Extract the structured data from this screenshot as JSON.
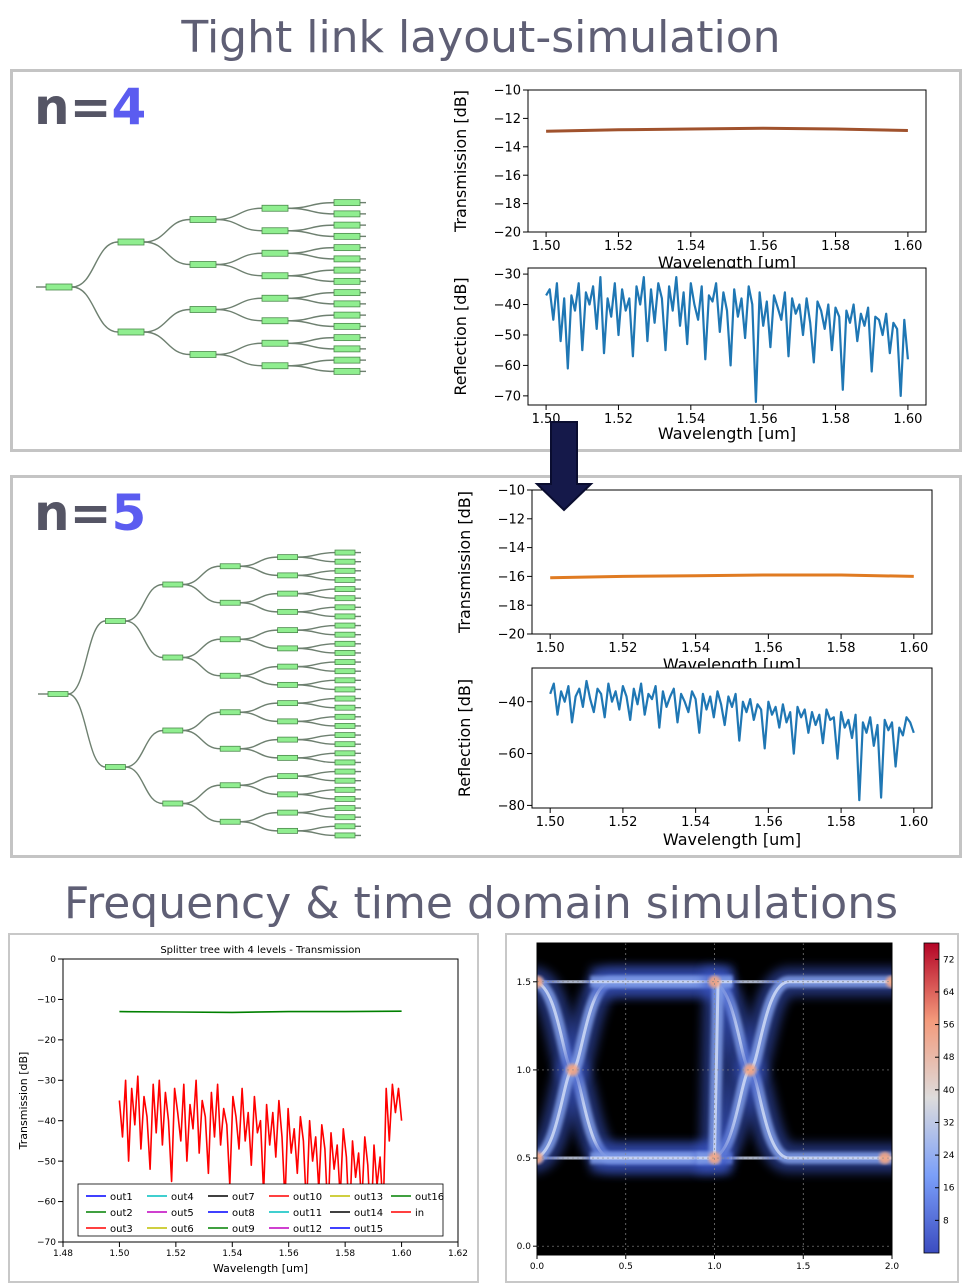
{
  "titles": {
    "top": "Tight link layout-simulation",
    "bottom": "Frequency & time domain simulations"
  },
  "panels": [
    {
      "n_prefix": "n=",
      "n_value": "4"
    },
    {
      "n_prefix": "n=",
      "n_value": "5"
    }
  ],
  "colors": {
    "title": "#5f5f75",
    "n_prefix": "#555565",
    "n_value": "#5b5cf0",
    "transmission_n4": "#a0522d",
    "transmission_n5": "#e07b22",
    "reflection": "#1f77b4",
    "splitter_box": "#90ee90",
    "waveguide": "#6e8070",
    "arrow": "#15194a",
    "eye_background": "#000000"
  },
  "chart_data": [
    {
      "id": "n4-transmission",
      "type": "line",
      "xlabel": "Wavelength [um]",
      "ylabel": "Transmission [dB]",
      "xlim": [
        1.495,
        1.605
      ],
      "ylim": [
        -20,
        -10
      ],
      "xticks": [
        "1.50",
        "1.52",
        "1.54",
        "1.56",
        "1.58",
        "1.60"
      ],
      "yticks": [
        "−20",
        "−18",
        "−16",
        "−14",
        "−12",
        "−10"
      ],
      "series": [
        {
          "x": [
            1.5,
            1.52,
            1.54,
            1.56,
            1.58,
            1.6
          ],
          "values": [
            -12.9,
            -12.8,
            -12.75,
            -12.7,
            -12.75,
            -12.85
          ]
        }
      ]
    },
    {
      "id": "n4-reflection",
      "type": "line",
      "xlabel": "Wavelength [um]",
      "ylabel": "Reflection [dB]",
      "xlim": [
        1.495,
        1.605
      ],
      "ylim": [
        -73,
        -28
      ],
      "xticks": [
        "1.50",
        "1.52",
        "1.54",
        "1.56",
        "1.58",
        "1.60"
      ],
      "yticks": [
        "−70",
        "−60",
        "−50",
        "−40",
        "−30"
      ],
      "series": [
        {
          "x_range": [
            1.5,
            1.6
          ],
          "values": [
            -37,
            -35,
            -45,
            -33,
            -52,
            -38,
            -61,
            -37,
            -42,
            -33,
            -55,
            -36,
            -40,
            -34,
            -48,
            -31,
            -56,
            -38,
            -44,
            -33,
            -50,
            -35,
            -42,
            -38,
            -57,
            -34,
            -40,
            -31,
            -52,
            -35,
            -46,
            -33,
            -38,
            -55,
            -34,
            -42,
            -31,
            -47,
            -36,
            -53,
            -33,
            -40,
            -45,
            -34,
            -58,
            -37,
            -39,
            -33,
            -49,
            -36,
            -42,
            -60,
            -35,
            -44,
            -38,
            -51,
            -34,
            -40,
            -72,
            -36,
            -47,
            -39,
            -54,
            -37,
            -41,
            -45,
            -36,
            -57,
            -38,
            -43,
            -40,
            -50,
            -38,
            -46,
            -59,
            -39,
            -42,
            -48,
            -40,
            -55,
            -41,
            -44,
            -68,
            -42,
            -46,
            -40,
            -52,
            -43,
            -47,
            -41,
            -62,
            -44,
            -45,
            -50,
            -43,
            -56,
            -46,
            -48,
            -70,
            -45,
            -58
          ]
        }
      ]
    },
    {
      "id": "n5-transmission",
      "type": "line",
      "xlabel": "Wavelength [um]",
      "ylabel": "Transmission [dB]",
      "xlim": [
        1.495,
        1.605
      ],
      "ylim": [
        -20,
        -10
      ],
      "xticks": [
        "1.50",
        "1.52",
        "1.54",
        "1.56",
        "1.58",
        "1.60"
      ],
      "yticks": [
        "−20",
        "−18",
        "−16",
        "−14",
        "−12",
        "−10"
      ],
      "series": [
        {
          "x": [
            1.5,
            1.52,
            1.54,
            1.56,
            1.58,
            1.6
          ],
          "values": [
            -16.1,
            -16.0,
            -15.95,
            -15.9,
            -15.9,
            -16.0
          ]
        }
      ]
    },
    {
      "id": "n5-reflection",
      "type": "line",
      "xlabel": "Wavelength [um]",
      "ylabel": "Reflection [dB]",
      "xlim": [
        1.495,
        1.605
      ],
      "ylim": [
        -81,
        -27
      ],
      "xticks": [
        "1.50",
        "1.52",
        "1.54",
        "1.56",
        "1.58",
        "1.60"
      ],
      "yticks": [
        "−80",
        "−60",
        "−40"
      ],
      "series": [
        {
          "x_range": [
            1.5,
            1.6
          ],
          "values": [
            -37,
            -33,
            -45,
            -36,
            -40,
            -34,
            -48,
            -38,
            -35,
            -42,
            -32,
            -39,
            -44,
            -35,
            -37,
            -46,
            -33,
            -40,
            -36,
            -43,
            -34,
            -38,
            -47,
            -35,
            -41,
            -33,
            -45,
            -37,
            -39,
            -34,
            -50,
            -36,
            -42,
            -38,
            -35,
            -48,
            -37,
            -40,
            -44,
            -36,
            -39,
            -52,
            -37,
            -43,
            -38,
            -46,
            -36,
            -41,
            -49,
            -38,
            -42,
            -37,
            -55,
            -40,
            -44,
            -39,
            -47,
            -41,
            -43,
            -58,
            -40,
            -45,
            -42,
            -50,
            -41,
            -48,
            -44,
            -60,
            -42,
            -46,
            -43,
            -52,
            -44,
            -49,
            -45,
            -56,
            -43,
            -47,
            -46,
            -62,
            -44,
            -50,
            -47,
            -54,
            -45,
            -78,
            -48,
            -52,
            -46,
            -57,
            -49,
            -77,
            -47,
            -51,
            -48,
            -65,
            -50,
            -53,
            -46,
            -48,
            -52
          ]
        }
      ]
    },
    {
      "id": "splitter-transmission",
      "type": "line",
      "title": "Splitter tree with 4 levels - Transmission",
      "xlabel": "Wavelength [um]",
      "ylabel": "Transmission [dB]",
      "xlim": [
        1.48,
        1.62
      ],
      "ylim": [
        -70,
        0
      ],
      "xticks": [
        "1.48",
        "1.50",
        "1.52",
        "1.54",
        "1.56",
        "1.58",
        "1.60",
        "1.62"
      ],
      "yticks": [
        "0",
        "−10",
        "−20",
        "−30",
        "−40",
        "−50",
        "−60",
        "−70"
      ],
      "legend": {
        "placement": "lower-center",
        "entries": [
          {
            "name": "out1",
            "color": "#0000ff"
          },
          {
            "name": "out2",
            "color": "#008000"
          },
          {
            "name": "out3",
            "color": "#ff0000"
          },
          {
            "name": "out4",
            "color": "#00bfbf"
          },
          {
            "name": "out5",
            "color": "#bf00bf"
          },
          {
            "name": "out6",
            "color": "#bfbf00"
          },
          {
            "name": "out7",
            "color": "#000000"
          },
          {
            "name": "out8",
            "color": "#0000ff"
          },
          {
            "name": "out9",
            "color": "#008000"
          },
          {
            "name": "out10",
            "color": "#ff0000"
          },
          {
            "name": "out11",
            "color": "#00bfbf"
          },
          {
            "name": "out12",
            "color": "#bf00bf"
          },
          {
            "name": "out13",
            "color": "#bfbf00"
          },
          {
            "name": "out14",
            "color": "#000000"
          },
          {
            "name": "out15",
            "color": "#0000ff"
          },
          {
            "name": "out16",
            "color": "#008000"
          },
          {
            "name": "in",
            "color": "#ff0000"
          }
        ]
      },
      "series": [
        {
          "name": "out16",
          "x": [
            1.5,
            1.52,
            1.54,
            1.56,
            1.58,
            1.6
          ],
          "values": [
            -13.0,
            -13.1,
            -13.2,
            -13.0,
            -13.0,
            -12.9
          ]
        },
        {
          "name": "in",
          "x_range": [
            1.5,
            1.6
          ],
          "values": [
            -35,
            -44,
            -30,
            -50,
            -32,
            -41,
            -29,
            -47,
            -34,
            -39,
            -52,
            -31,
            -43,
            -30,
            -46,
            -33,
            -40,
            -55,
            -32,
            -38,
            -45,
            -31,
            -50,
            -36,
            -42,
            -30,
            -48,
            -35,
            -39,
            -53,
            -33,
            -44,
            -31,
            -46,
            -37,
            -41,
            -56,
            -34,
            -39,
            -47,
            -32,
            -45,
            -38,
            -51,
            -34,
            -43,
            -40,
            -58,
            -36,
            -46,
            -38,
            -49,
            -35,
            -44,
            -60,
            -37,
            -48,
            -42,
            -53,
            -39,
            -45,
            -62,
            -40,
            -50,
            -44,
            -57,
            -41,
            -47,
            -64,
            -43,
            -52,
            -46,
            -59,
            -42,
            -49,
            -66,
            -45,
            -54,
            -48,
            -61,
            -44,
            -51,
            -67,
            -46,
            -56,
            -49,
            -63,
            -32,
            -45,
            -31,
            -38,
            -32,
            -40
          ]
        }
      ]
    },
    {
      "id": "eye-diagram",
      "type": "heatmap",
      "xlim": [
        0.0,
        2.0
      ],
      "ylim": [
        -0.05,
        1.72
      ],
      "xticks": [
        "0.0",
        "0.5",
        "1.0",
        "1.5",
        "2.0"
      ],
      "yticks": [
        "0.0",
        "0.5",
        "1.0",
        "1.5"
      ],
      "levels": {
        "low": 0.5,
        "high": 1.5,
        "crossing": 1.0,
        "crossing_times": [
          0.2,
          1.2
        ]
      },
      "colorbar": {
        "ticks": [
          "8",
          "16",
          "24",
          "32",
          "40",
          "48",
          "56",
          "64",
          "72"
        ],
        "range": [
          0,
          76
        ]
      },
      "grid": true
    }
  ]
}
